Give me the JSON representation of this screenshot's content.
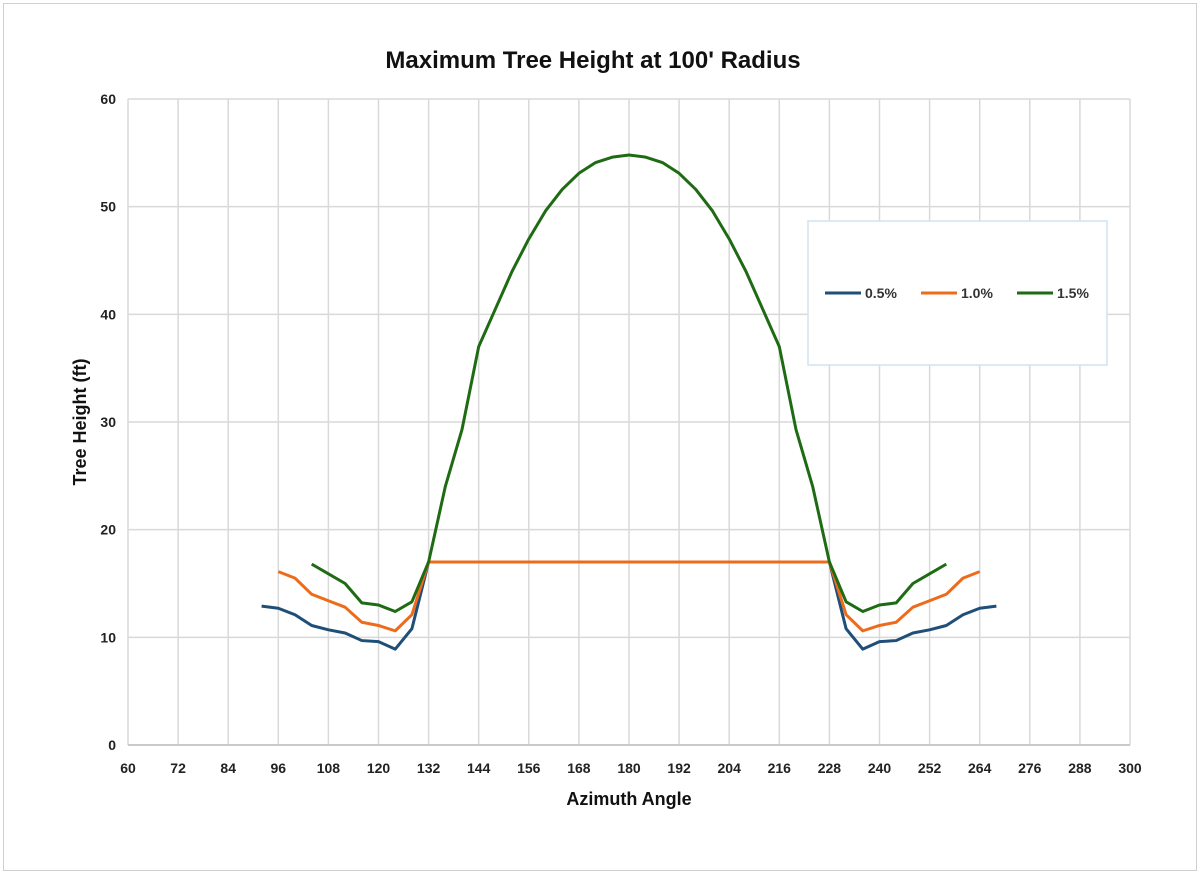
{
  "chart_data": {
    "type": "line",
    "title": "Maximum Tree Height at 100' Radius",
    "xlabel": "Azimuth Angle",
    "ylabel": "Tree Height (ft)",
    "xlim": [
      60,
      300
    ],
    "ylim": [
      0,
      60
    ],
    "xticks": [
      60,
      72,
      84,
      96,
      108,
      120,
      132,
      144,
      156,
      168,
      180,
      192,
      204,
      216,
      228,
      240,
      252,
      264,
      276,
      288,
      300
    ],
    "yticks": [
      0,
      10,
      20,
      30,
      40,
      50,
      60
    ],
    "grid": true,
    "legend": "right",
    "series": [
      {
        "name": "0.5%",
        "color": "#1f4e79",
        "x": [
          92,
          96,
          100,
          104,
          108,
          112,
          116,
          120,
          124,
          128,
          132
        ],
        "y": [
          12.9,
          12.7,
          12.1,
          11.1,
          10.7,
          10.4,
          9.7,
          9.6,
          8.9,
          10.8,
          17.0
        ]
      },
      {
        "name": "1.0%",
        "color": "#ed6c1c",
        "x": [
          96,
          100,
          104,
          108,
          112,
          116,
          120,
          124,
          128,
          132
        ],
        "y": [
          16.1,
          15.5,
          14.0,
          13.4,
          12.8,
          11.4,
          11.1,
          10.6,
          12.1,
          17.0
        ]
      },
      {
        "name": "1.5%",
        "color": "#1e6b14",
        "x": [
          104,
          108,
          112,
          116,
          120,
          124,
          128,
          132,
          136,
          140,
          144,
          148,
          152,
          156,
          160,
          164,
          168,
          172,
          176,
          180
        ],
        "y": [
          16.8,
          15.9,
          15.0,
          13.2,
          13.0,
          12.4,
          13.3,
          17.0,
          24.0,
          29.3,
          37.0,
          40.5,
          44.0,
          47.0,
          49.6,
          51.6,
          53.1,
          54.1,
          54.6,
          54.8
        ]
      }
    ],
    "symmetric_about": 180
  }
}
